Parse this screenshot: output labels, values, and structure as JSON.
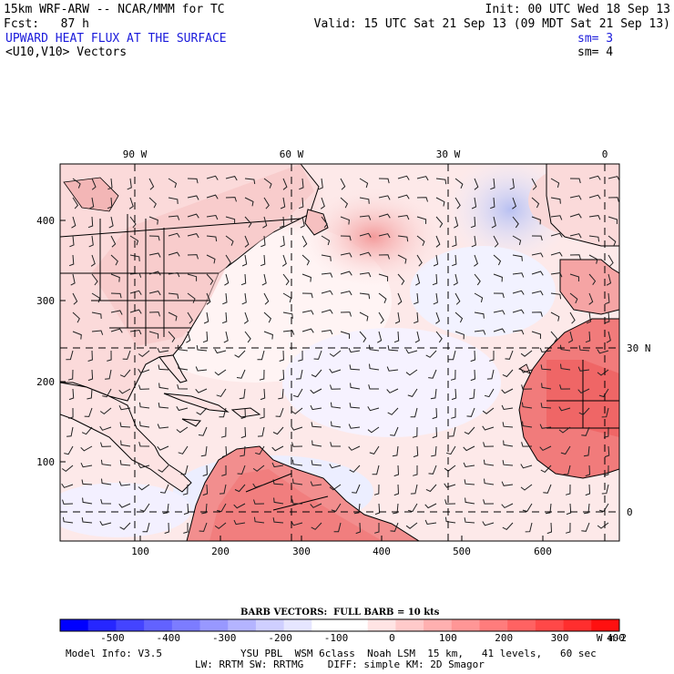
{
  "header": {
    "model": "15km WRF-ARW -- NCAR/MMM for TC",
    "init": "Init: 00 UTC Wed 18 Sep 13",
    "fcst": "Fcst:   87 h",
    "valid": "Valid: 15 UTC Sat 21 Sep 13 (09 MDT Sat 21 Sep 13)",
    "field_title": "UPWARD HEAT FLUX AT THE SURFACE",
    "field_sm": "sm= 3",
    "vector_title": "<U10,V10> Vectors",
    "vector_sm": "sm= 4"
  },
  "map": {
    "top_lon_labels": [
      "90 W",
      "60 W",
      "30 W",
      "0"
    ],
    "right_lat_labels": [
      "30 N",
      "0"
    ],
    "y_ticks": [
      "400",
      "300",
      "200",
      "100"
    ],
    "x_ticks": [
      "100",
      "200",
      "300",
      "400",
      "500",
      "600"
    ]
  },
  "colorbar": {
    "barb_label": "BARB VECTORS:  FULL BARB = 10 kts",
    "tick_labels": [
      "-500",
      "-400",
      "-300",
      "-200",
      "-100",
      "0",
      "100",
      "200",
      "300",
      "400"
    ],
    "units": "W m-2",
    "colors": [
      "#0000ff",
      "#2626ff",
      "#4444ff",
      "#6262ff",
      "#7c7cff",
      "#9898ff",
      "#b4b4ff",
      "#cfcfff",
      "#e6e6ff",
      "#ffffff",
      "#ffffff",
      "#ffe4e4",
      "#ffcaca",
      "#ffb0b0",
      "#ff9696",
      "#ff7c7c",
      "#ff6262",
      "#ff4848",
      "#ff2e2e",
      "#ff1010"
    ]
  },
  "footer": {
    "line1_left": "Model Info: V3.5",
    "line1_right": "YSU PBL  WSM 6class  Noah LSM  15 km,   41 levels,   60 sec",
    "line2": "LW: RRTM SW: RRTMG    DIFF: simple KM: 2D Smagor"
  }
}
